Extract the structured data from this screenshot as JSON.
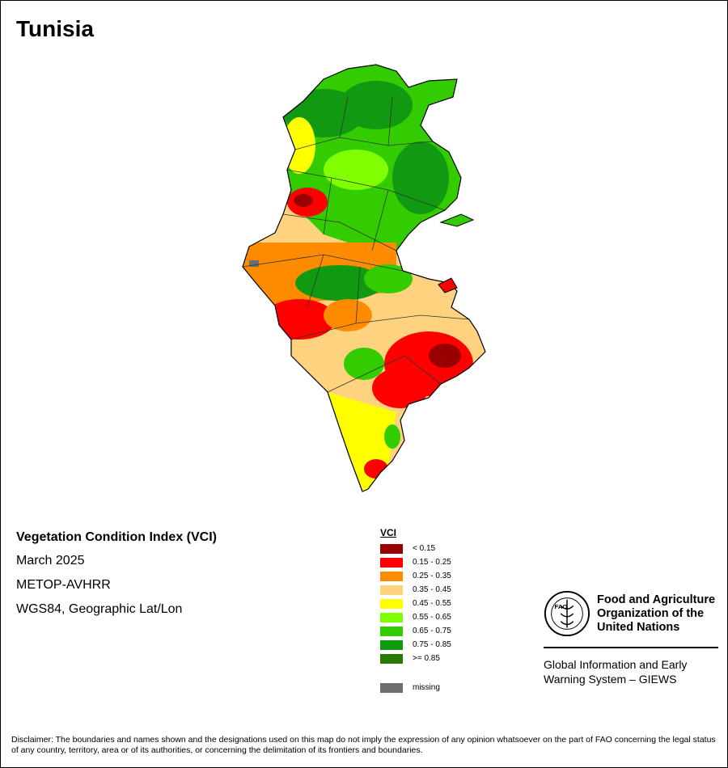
{
  "title": "Tunisia",
  "info": {
    "index_name": "Vegetation Condition Index (VCI)",
    "date": "March 2025",
    "sensor": "METOP-AVHRR",
    "projection": "WGS84, Geographic Lat/Lon"
  },
  "legend": {
    "title": "VCI",
    "items": [
      {
        "label": "< 0.15",
        "color": "#990000"
      },
      {
        "label": "0.15 - 0.25",
        "color": "#ff0000"
      },
      {
        "label": "0.25 - 0.35",
        "color": "#ff8c00"
      },
      {
        "label": "0.35 - 0.45",
        "color": "#ffd27f"
      },
      {
        "label": "0.45 - 0.55",
        "color": "#ffff00"
      },
      {
        "label": "0.55 - 0.65",
        "color": "#80ff00"
      },
      {
        "label": "0.65 - 0.75",
        "color": "#33cc00"
      },
      {
        "label": "0.75 - 0.85",
        "color": "#119911"
      },
      {
        "label": ">= 0.85",
        "color": "#2a7a00"
      }
    ],
    "missing": {
      "label": "missing",
      "color": "#6e6e6e"
    }
  },
  "organization": {
    "name_line1": "Food and Agriculture",
    "name_line2": "Organization of the",
    "name_line3": "United Nations",
    "logo_text": "FAO",
    "logo_motto": "FIAT PANIS"
  },
  "system": {
    "line1": "Global Information and Early",
    "line2": "Warning System – GIEWS"
  },
  "disclaimer": "Disclaimer: The boundaries and names shown and the designations used on this map do not imply the expression of any opinion whatsoever on the part of FAO concerning the legal status of any country, territory, area or of its authorities, or concerning the delimitation of its frontiers and boundaries."
}
